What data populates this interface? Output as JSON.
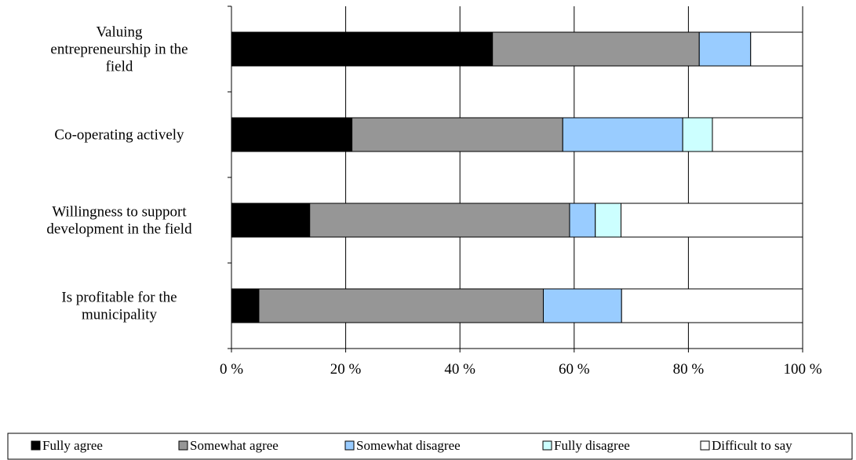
{
  "chart_data": {
    "type": "bar",
    "orientation": "horizontal",
    "stacked": "percent",
    "categories": [
      [
        "Valuing",
        "entrepreneurship in the",
        "field"
      ],
      [
        "Co-operating actively"
      ],
      [
        "Willingness to support",
        "development in the field"
      ],
      [
        "Is profitable for the",
        "municipality"
      ]
    ],
    "series": [
      {
        "name": "Fully agree",
        "color": "#000000",
        "values": [
          45.7,
          21.1,
          13.7,
          4.8
        ]
      },
      {
        "name": "Somewhat agree",
        "color": "#969696",
        "values": [
          36.2,
          36.9,
          45.5,
          49.8
        ]
      },
      {
        "name": "Somewhat disagree",
        "color": "#99CCFF",
        "values": [
          9.0,
          21.0,
          4.5,
          13.7
        ]
      },
      {
        "name": "Fully disagree",
        "color": "#CCFFFF",
        "values": [
          0.0,
          5.2,
          4.5,
          0.0
        ]
      },
      {
        "name": "Difficult to say",
        "color": "#FFFFFF",
        "values": [
          9.1,
          15.8,
          31.8,
          31.7
        ]
      }
    ],
    "xticks": [
      "0 %",
      "20 %",
      "40 %",
      "60 %",
      "80 %",
      "100 %"
    ],
    "xlim": [
      0,
      100
    ],
    "grid": true,
    "legend": "bottom"
  }
}
